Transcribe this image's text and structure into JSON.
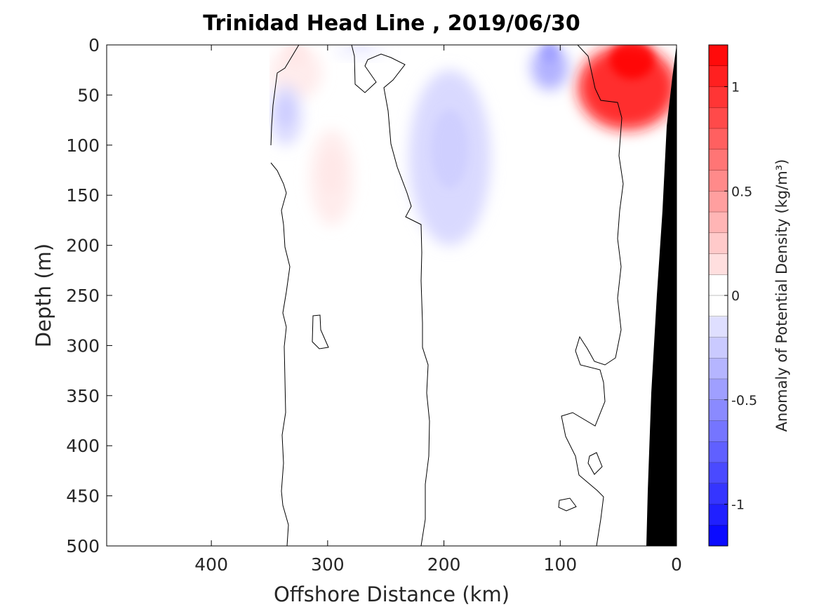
{
  "chart_data": {
    "type": "heatmap",
    "title": "Trinidad Head Line , 2019/06/30",
    "xlabel": "Offshore Distance (km)",
    "ylabel": "Depth (m)",
    "xlim": [
      490,
      0
    ],
    "ylim": [
      500,
      0
    ],
    "x_ticks": [
      "400",
      "300",
      "200",
      "100",
      "0"
    ],
    "y_ticks": [
      "0",
      "50",
      "100",
      "150",
      "200",
      "250",
      "300",
      "350",
      "400",
      "450",
      "500"
    ],
    "colorbar": {
      "label": "Anomaly of Potential Density (kg/m³)",
      "range": [
        -1.2,
        1.2
      ],
      "step": 0.1,
      "ticks": [
        "1",
        "0.5",
        "0",
        "-0.5",
        "-1"
      ],
      "low_color": "#0000ff",
      "mid_color": "#ffffff",
      "high_color": "#ff0000"
    },
    "zero_contour_color": "#000000",
    "bathymetry_color": "#000000",
    "anomaly_regions": [
      {
        "sign": "positive",
        "peak_value": 1.1,
        "distance_km": [
          0,
          85
        ],
        "depth_m": [
          0,
          85
        ]
      },
      {
        "sign": "positive",
        "peak_value": 0.1,
        "distance_km": [
          305,
          350
        ],
        "depth_m": [
          0,
          55
        ]
      },
      {
        "sign": "positive",
        "peak_value": 0.1,
        "distance_km": [
          278,
          315
        ],
        "depth_m": [
          85,
          180
        ]
      },
      {
        "sign": "negative",
        "peak_value": -0.2,
        "distance_km": [
          160,
          230
        ],
        "depth_m": [
          25,
          200
        ]
      },
      {
        "sign": "negative",
        "peak_value": -0.4,
        "distance_km": [
          93,
          125
        ],
        "depth_m": [
          0,
          45
        ]
      },
      {
        "sign": "negative",
        "peak_value": -0.2,
        "distance_km": [
          322,
          350
        ],
        "depth_m": [
          40,
          100
        ]
      },
      {
        "sign": "negative",
        "peak_value": -0.1,
        "distance_km": [
          250,
          295
        ],
        "depth_m": [
          0,
          12
        ]
      }
    ],
    "data_start_distance_km": 350
  }
}
